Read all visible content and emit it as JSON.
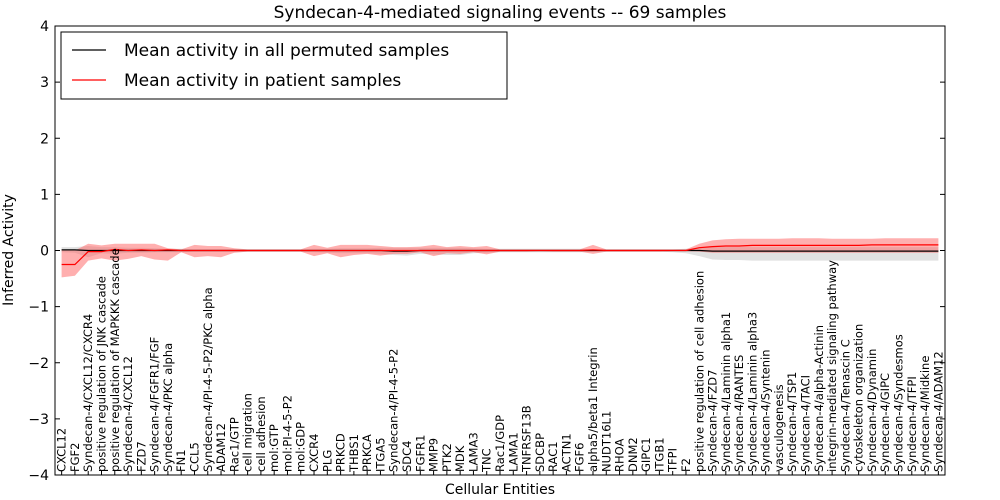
{
  "chart_data": {
    "type": "line",
    "title": "Syndecan-4-mediated signaling events -- 69 samples",
    "xlabel": "Cellular Entities",
    "ylabel": "Inferred Activity",
    "ylim": [
      -4,
      4
    ],
    "yticks": [
      4,
      3,
      2,
      1,
      0,
      -1,
      -2,
      -3,
      -4
    ],
    "ytick_labels": [
      "4",
      "3",
      "2",
      "1",
      "0",
      "−1",
      "−2",
      "−3",
      "−4"
    ],
    "grid": false,
    "legend_position": "top-left",
    "categories": [
      "CXCL12",
      "FGF2",
      "Syndecan-4/CXCL12/CXCR4",
      "positive regulation of JNK cascade",
      "positive regulation of MAPKKK cascade",
      "Syndecan-4/CXCL12",
      "FZD7",
      "Syndecan-4/FGFR1/FGF",
      "Syndecan-4/PKC alpha",
      "FN1",
      "CCL5",
      "Syndecan-4/PI-4-5-P2/PKC alpha",
      "ADAM12",
      "Rac1/GTP",
      "cell migration",
      "cell adhesion",
      "mol:GTP",
      "mol:PI-4-5-P2",
      "mol:GDP",
      "CXCR4",
      "PLG",
      "PRKCD",
      "THBS1",
      "PRKCA",
      "ITGA5",
      "Syndecan-4/PI-4-5-P2",
      "SDC4",
      "FGFR1",
      "MMP9",
      "PTK2",
      "MDK",
      "LAMA3",
      "TNC",
      "Rac1/GDP",
      "LAMA1",
      "TNFRSF13B",
      "SDCBP",
      "RAC1",
      "ACTN1",
      "FGF6",
      "alpha5/beta1 Integrin",
      "NUDT16L1",
      "RHOA",
      "DNM2",
      "GIPC1",
      "ITGB1",
      "TFPI",
      "F2",
      "positive regulation of cell adhesion",
      "Syndecan-4/FZD7",
      "Syndecan-4/Laminin alpha1",
      "Syndecan-4/RANTES",
      "Syndecan-4/Laminin alpha3",
      "Syndecan-4/Syntenin",
      "vasculogenesis",
      "Syndecan-4/TSP1",
      "Syndecan-4/TACI",
      "Syndecan-4/alpha-Actinin",
      "integrin-mediated signaling pathway",
      "Syndecan-4/Tenascin C",
      "cytoskeleton organization",
      "Syndecan-4/Dynamin",
      "Syndecan-4/GIPC",
      "Syndecan-4/Syndesmos",
      "Syndecan-4/TFPI",
      "Syndecan-4/Midkine",
      "Syndecan-4/ADAM12"
    ],
    "series": [
      {
        "name": "Mean activity in all permuted samples",
        "color": "#000000",
        "values": [
          0.01,
          0.01,
          0.0,
          0.0,
          0.0,
          0.0,
          0.0,
          0.0,
          0.0,
          0.0,
          0.0,
          0.0,
          0.0,
          0.0,
          0.0,
          0.0,
          0.0,
          0.0,
          0.0,
          0.0,
          0.0,
          0.0,
          0.0,
          0.0,
          0.0,
          -0.01,
          -0.01,
          0.0,
          0.0,
          0.0,
          0.0,
          0.0,
          0.0,
          0.0,
          0.0,
          0.0,
          0.0,
          0.0,
          0.0,
          0.0,
          0.0,
          0.0,
          0.0,
          0.0,
          0.0,
          0.0,
          0.0,
          0.0,
          0.0,
          -0.01,
          -0.01,
          -0.01,
          -0.01,
          -0.01,
          -0.01,
          -0.01,
          -0.01,
          -0.01,
          -0.01,
          -0.01,
          -0.01,
          -0.01,
          -0.01,
          -0.01,
          -0.01,
          -0.01,
          -0.01
        ],
        "lower": [
          -0.03,
          -0.04,
          -0.12,
          -0.05,
          -0.06,
          -0.04,
          -0.04,
          -0.03,
          -0.03,
          -0.03,
          -0.02,
          -0.02,
          -0.02,
          -0.02,
          -0.02,
          -0.02,
          -0.02,
          -0.02,
          -0.02,
          -0.03,
          -0.04,
          -0.05,
          -0.05,
          -0.05,
          -0.06,
          -0.08,
          -0.09,
          -0.06,
          -0.07,
          -0.08,
          -0.08,
          -0.05,
          -0.04,
          -0.03,
          -0.03,
          -0.03,
          -0.03,
          -0.03,
          -0.03,
          -0.03,
          -0.02,
          -0.02,
          -0.02,
          -0.02,
          -0.02,
          -0.02,
          -0.03,
          -0.05,
          -0.1,
          -0.16,
          -0.17,
          -0.17,
          -0.18,
          -0.18,
          -0.18,
          -0.18,
          -0.18,
          -0.18,
          -0.18,
          -0.18,
          -0.18,
          -0.18,
          -0.18,
          -0.18,
          -0.18,
          -0.18,
          -0.18
        ],
        "upper": [
          0.06,
          0.06,
          0.08,
          0.06,
          0.06,
          0.05,
          0.05,
          0.04,
          0.03,
          0.03,
          0.02,
          0.02,
          0.02,
          0.02,
          0.02,
          0.02,
          0.02,
          0.02,
          0.02,
          0.03,
          0.03,
          0.04,
          0.04,
          0.04,
          0.05,
          0.05,
          0.05,
          0.05,
          0.05,
          0.05,
          0.05,
          0.04,
          0.03,
          0.03,
          0.03,
          0.03,
          0.03,
          0.03,
          0.03,
          0.03,
          0.02,
          0.02,
          0.02,
          0.02,
          0.02,
          0.02,
          0.02,
          0.03,
          0.05,
          0.06,
          0.06,
          0.06,
          0.06,
          0.06,
          0.06,
          0.06,
          0.06,
          0.06,
          0.06,
          0.06,
          0.06,
          0.06,
          0.06,
          0.06,
          0.06,
          0.06,
          0.06
        ]
      },
      {
        "name": "Mean activity in patient samples",
        "color": "#ff0000",
        "values": [
          -0.25,
          -0.25,
          -0.02,
          -0.02,
          0.02,
          0.0,
          0.01,
          0.0,
          0.01,
          0.0,
          0.0,
          0.0,
          0.0,
          0.0,
          0.0,
          0.0,
          0.0,
          0.0,
          0.0,
          0.0,
          0.0,
          0.0,
          0.0,
          0.0,
          0.0,
          0.0,
          0.0,
          0.0,
          0.0,
          0.0,
          0.0,
          0.0,
          0.0,
          0.0,
          0.0,
          0.0,
          0.0,
          0.0,
          0.0,
          0.0,
          0.01,
          0.0,
          0.0,
          0.0,
          0.0,
          0.0,
          0.0,
          0.0,
          0.05,
          0.07,
          0.08,
          0.08,
          0.09,
          0.09,
          0.09,
          0.09,
          0.09,
          0.09,
          0.09,
          0.09,
          0.09,
          0.1,
          0.1,
          0.1,
          0.1,
          0.1,
          0.1
        ],
        "lower": [
          -0.48,
          -0.45,
          -0.18,
          -0.14,
          -0.18,
          -0.15,
          -0.1,
          -0.16,
          -0.18,
          -0.03,
          -0.12,
          -0.1,
          -0.12,
          -0.04,
          -0.02,
          -0.02,
          -0.02,
          -0.02,
          -0.02,
          -0.1,
          -0.05,
          -0.12,
          -0.08,
          -0.06,
          -0.09,
          -0.06,
          -0.06,
          -0.03,
          -0.1,
          -0.05,
          -0.06,
          -0.03,
          -0.07,
          -0.02,
          -0.02,
          -0.02,
          -0.01,
          -0.02,
          -0.02,
          -0.02,
          -0.06,
          -0.02,
          -0.02,
          -0.02,
          -0.02,
          -0.02,
          -0.01,
          -0.01,
          -0.02,
          -0.04,
          -0.04,
          -0.04,
          -0.04,
          -0.04,
          -0.04,
          -0.04,
          -0.04,
          -0.04,
          -0.04,
          -0.04,
          -0.04,
          -0.04,
          -0.04,
          -0.04,
          -0.04,
          -0.04,
          -0.04
        ],
        "upper": [
          0.02,
          0.0,
          0.12,
          0.09,
          0.12,
          0.12,
          0.12,
          0.12,
          0.04,
          0.02,
          0.1,
          0.08,
          0.08,
          0.04,
          0.02,
          0.02,
          0.02,
          0.02,
          0.02,
          0.1,
          0.05,
          0.1,
          0.1,
          0.1,
          0.08,
          0.06,
          0.06,
          0.07,
          0.1,
          0.06,
          0.08,
          0.06,
          0.08,
          0.02,
          0.02,
          0.02,
          0.02,
          0.02,
          0.02,
          0.02,
          0.1,
          0.02,
          0.02,
          0.02,
          0.02,
          0.02,
          0.02,
          0.02,
          0.12,
          0.18,
          0.2,
          0.21,
          0.21,
          0.21,
          0.21,
          0.22,
          0.22,
          0.22,
          0.21,
          0.21,
          0.21,
          0.21,
          0.22,
          0.22,
          0.22,
          0.22,
          0.22
        ]
      }
    ]
  }
}
